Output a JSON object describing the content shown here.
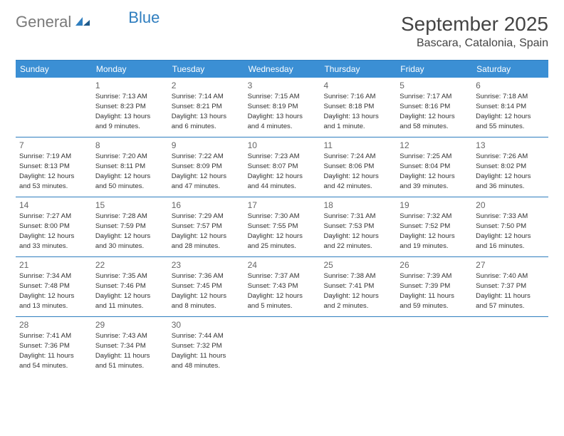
{
  "logo": {
    "general": "General",
    "blue": "Blue"
  },
  "title": "September 2025",
  "location": "Bascara, Catalonia, Spain",
  "day_headers": [
    "Sunday",
    "Monday",
    "Tuesday",
    "Wednesday",
    "Thursday",
    "Friday",
    "Saturday"
  ],
  "colors": {
    "header_bg": "#3b8fd4",
    "border": "#2f7ebf",
    "logo_gray": "#7a7a7a",
    "logo_blue": "#2f7ebf"
  },
  "weeks": [
    [
      {
        "num": "",
        "sunrise": "",
        "sunset": "",
        "daylight1": "",
        "daylight2": ""
      },
      {
        "num": "1",
        "sunrise": "Sunrise: 7:13 AM",
        "sunset": "Sunset: 8:23 PM",
        "daylight1": "Daylight: 13 hours",
        "daylight2": "and 9 minutes."
      },
      {
        "num": "2",
        "sunrise": "Sunrise: 7:14 AM",
        "sunset": "Sunset: 8:21 PM",
        "daylight1": "Daylight: 13 hours",
        "daylight2": "and 6 minutes."
      },
      {
        "num": "3",
        "sunrise": "Sunrise: 7:15 AM",
        "sunset": "Sunset: 8:19 PM",
        "daylight1": "Daylight: 13 hours",
        "daylight2": "and 4 minutes."
      },
      {
        "num": "4",
        "sunrise": "Sunrise: 7:16 AM",
        "sunset": "Sunset: 8:18 PM",
        "daylight1": "Daylight: 13 hours",
        "daylight2": "and 1 minute."
      },
      {
        "num": "5",
        "sunrise": "Sunrise: 7:17 AM",
        "sunset": "Sunset: 8:16 PM",
        "daylight1": "Daylight: 12 hours",
        "daylight2": "and 58 minutes."
      },
      {
        "num": "6",
        "sunrise": "Sunrise: 7:18 AM",
        "sunset": "Sunset: 8:14 PM",
        "daylight1": "Daylight: 12 hours",
        "daylight2": "and 55 minutes."
      }
    ],
    [
      {
        "num": "7",
        "sunrise": "Sunrise: 7:19 AM",
        "sunset": "Sunset: 8:13 PM",
        "daylight1": "Daylight: 12 hours",
        "daylight2": "and 53 minutes."
      },
      {
        "num": "8",
        "sunrise": "Sunrise: 7:20 AM",
        "sunset": "Sunset: 8:11 PM",
        "daylight1": "Daylight: 12 hours",
        "daylight2": "and 50 minutes."
      },
      {
        "num": "9",
        "sunrise": "Sunrise: 7:22 AM",
        "sunset": "Sunset: 8:09 PM",
        "daylight1": "Daylight: 12 hours",
        "daylight2": "and 47 minutes."
      },
      {
        "num": "10",
        "sunrise": "Sunrise: 7:23 AM",
        "sunset": "Sunset: 8:07 PM",
        "daylight1": "Daylight: 12 hours",
        "daylight2": "and 44 minutes."
      },
      {
        "num": "11",
        "sunrise": "Sunrise: 7:24 AM",
        "sunset": "Sunset: 8:06 PM",
        "daylight1": "Daylight: 12 hours",
        "daylight2": "and 42 minutes."
      },
      {
        "num": "12",
        "sunrise": "Sunrise: 7:25 AM",
        "sunset": "Sunset: 8:04 PM",
        "daylight1": "Daylight: 12 hours",
        "daylight2": "and 39 minutes."
      },
      {
        "num": "13",
        "sunrise": "Sunrise: 7:26 AM",
        "sunset": "Sunset: 8:02 PM",
        "daylight1": "Daylight: 12 hours",
        "daylight2": "and 36 minutes."
      }
    ],
    [
      {
        "num": "14",
        "sunrise": "Sunrise: 7:27 AM",
        "sunset": "Sunset: 8:00 PM",
        "daylight1": "Daylight: 12 hours",
        "daylight2": "and 33 minutes."
      },
      {
        "num": "15",
        "sunrise": "Sunrise: 7:28 AM",
        "sunset": "Sunset: 7:59 PM",
        "daylight1": "Daylight: 12 hours",
        "daylight2": "and 30 minutes."
      },
      {
        "num": "16",
        "sunrise": "Sunrise: 7:29 AM",
        "sunset": "Sunset: 7:57 PM",
        "daylight1": "Daylight: 12 hours",
        "daylight2": "and 28 minutes."
      },
      {
        "num": "17",
        "sunrise": "Sunrise: 7:30 AM",
        "sunset": "Sunset: 7:55 PM",
        "daylight1": "Daylight: 12 hours",
        "daylight2": "and 25 minutes."
      },
      {
        "num": "18",
        "sunrise": "Sunrise: 7:31 AM",
        "sunset": "Sunset: 7:53 PM",
        "daylight1": "Daylight: 12 hours",
        "daylight2": "and 22 minutes."
      },
      {
        "num": "19",
        "sunrise": "Sunrise: 7:32 AM",
        "sunset": "Sunset: 7:52 PM",
        "daylight1": "Daylight: 12 hours",
        "daylight2": "and 19 minutes."
      },
      {
        "num": "20",
        "sunrise": "Sunrise: 7:33 AM",
        "sunset": "Sunset: 7:50 PM",
        "daylight1": "Daylight: 12 hours",
        "daylight2": "and 16 minutes."
      }
    ],
    [
      {
        "num": "21",
        "sunrise": "Sunrise: 7:34 AM",
        "sunset": "Sunset: 7:48 PM",
        "daylight1": "Daylight: 12 hours",
        "daylight2": "and 13 minutes."
      },
      {
        "num": "22",
        "sunrise": "Sunrise: 7:35 AM",
        "sunset": "Sunset: 7:46 PM",
        "daylight1": "Daylight: 12 hours",
        "daylight2": "and 11 minutes."
      },
      {
        "num": "23",
        "sunrise": "Sunrise: 7:36 AM",
        "sunset": "Sunset: 7:45 PM",
        "daylight1": "Daylight: 12 hours",
        "daylight2": "and 8 minutes."
      },
      {
        "num": "24",
        "sunrise": "Sunrise: 7:37 AM",
        "sunset": "Sunset: 7:43 PM",
        "daylight1": "Daylight: 12 hours",
        "daylight2": "and 5 minutes."
      },
      {
        "num": "25",
        "sunrise": "Sunrise: 7:38 AM",
        "sunset": "Sunset: 7:41 PM",
        "daylight1": "Daylight: 12 hours",
        "daylight2": "and 2 minutes."
      },
      {
        "num": "26",
        "sunrise": "Sunrise: 7:39 AM",
        "sunset": "Sunset: 7:39 PM",
        "daylight1": "Daylight: 11 hours",
        "daylight2": "and 59 minutes."
      },
      {
        "num": "27",
        "sunrise": "Sunrise: 7:40 AM",
        "sunset": "Sunset: 7:37 PM",
        "daylight1": "Daylight: 11 hours",
        "daylight2": "and 57 minutes."
      }
    ],
    [
      {
        "num": "28",
        "sunrise": "Sunrise: 7:41 AM",
        "sunset": "Sunset: 7:36 PM",
        "daylight1": "Daylight: 11 hours",
        "daylight2": "and 54 minutes."
      },
      {
        "num": "29",
        "sunrise": "Sunrise: 7:43 AM",
        "sunset": "Sunset: 7:34 PM",
        "daylight1": "Daylight: 11 hours",
        "daylight2": "and 51 minutes."
      },
      {
        "num": "30",
        "sunrise": "Sunrise: 7:44 AM",
        "sunset": "Sunset: 7:32 PM",
        "daylight1": "Daylight: 11 hours",
        "daylight2": "and 48 minutes."
      },
      {
        "num": "",
        "sunrise": "",
        "sunset": "",
        "daylight1": "",
        "daylight2": ""
      },
      {
        "num": "",
        "sunrise": "",
        "sunset": "",
        "daylight1": "",
        "daylight2": ""
      },
      {
        "num": "",
        "sunrise": "",
        "sunset": "",
        "daylight1": "",
        "daylight2": ""
      },
      {
        "num": "",
        "sunrise": "",
        "sunset": "",
        "daylight1": "",
        "daylight2": ""
      }
    ]
  ]
}
